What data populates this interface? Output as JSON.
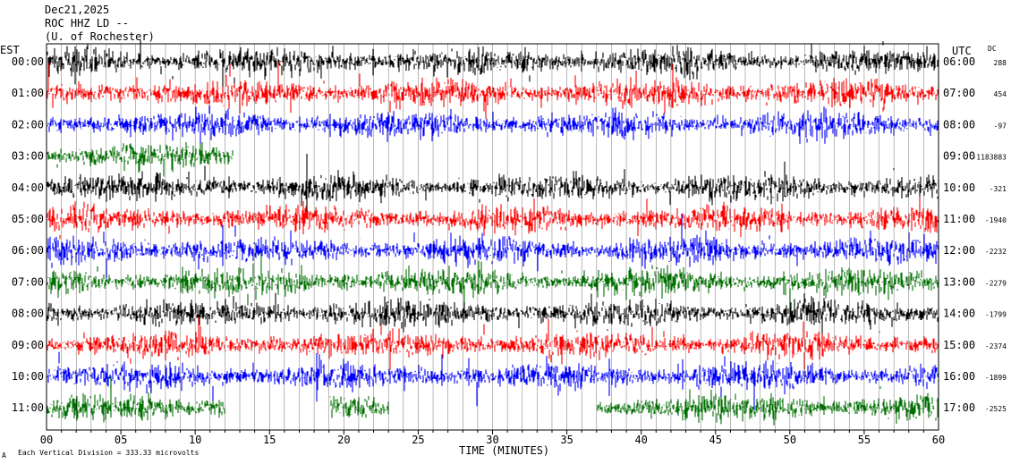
{
  "header": {
    "date": "Dec21,2025",
    "station": "ROC HHZ LD --",
    "location": "(U. of Rochester)"
  },
  "left_axis_title": "EST",
  "right_axis_title": "UTC",
  "dc_title": "DC",
  "footer": {
    "scale_note": "Each Vertical Division = 333.33 microvolts",
    "corner_mark": "A"
  },
  "chart_data": {
    "type": "line",
    "title": "",
    "xlabel": "TIME (MINUTES)",
    "ylabel": "",
    "x_ticks": [
      "00",
      "05",
      "10",
      "15",
      "20",
      "25",
      "30",
      "35",
      "40",
      "45",
      "50",
      "55",
      "60"
    ],
    "xlim": [
      0,
      60
    ],
    "grid": true,
    "colors": {
      "black": "#000000",
      "red": "#ff0000",
      "blue": "#0000ff",
      "green": "#007000"
    },
    "rows": [
      {
        "est": "00:00",
        "utc": "06:00",
        "dc": "288",
        "color": "black"
      },
      {
        "est": "01:00",
        "utc": "07:00",
        "dc": "454",
        "color": "red"
      },
      {
        "est": "02:00",
        "utc": "08:00",
        "dc": "-97",
        "color": "blue"
      },
      {
        "est": "03:00",
        "utc": "09:00",
        "dc": "-1183883",
        "color": "green",
        "end_minute": 12.5
      },
      {
        "est": "04:00",
        "utc": "10:00",
        "dc": "-321",
        "color": "black"
      },
      {
        "est": "05:00",
        "utc": "11:00",
        "dc": "-1940",
        "color": "red"
      },
      {
        "est": "06:00",
        "utc": "12:00",
        "dc": "-2232",
        "color": "blue"
      },
      {
        "est": "07:00",
        "utc": "13:00",
        "dc": "-2279",
        "color": "green"
      },
      {
        "est": "08:00",
        "utc": "14:00",
        "dc": "-1799",
        "color": "black"
      },
      {
        "est": "09:00",
        "utc": "15:00",
        "dc": "-2374",
        "color": "red"
      },
      {
        "est": "10:00",
        "utc": "16:00",
        "dc": "-1899",
        "color": "blue"
      },
      {
        "est": "11:00",
        "utc": "17:00",
        "dc": "-2525",
        "color": "green",
        "segments": [
          [
            0,
            12
          ],
          [
            19,
            23
          ],
          [
            37,
            60
          ]
        ]
      }
    ]
  }
}
